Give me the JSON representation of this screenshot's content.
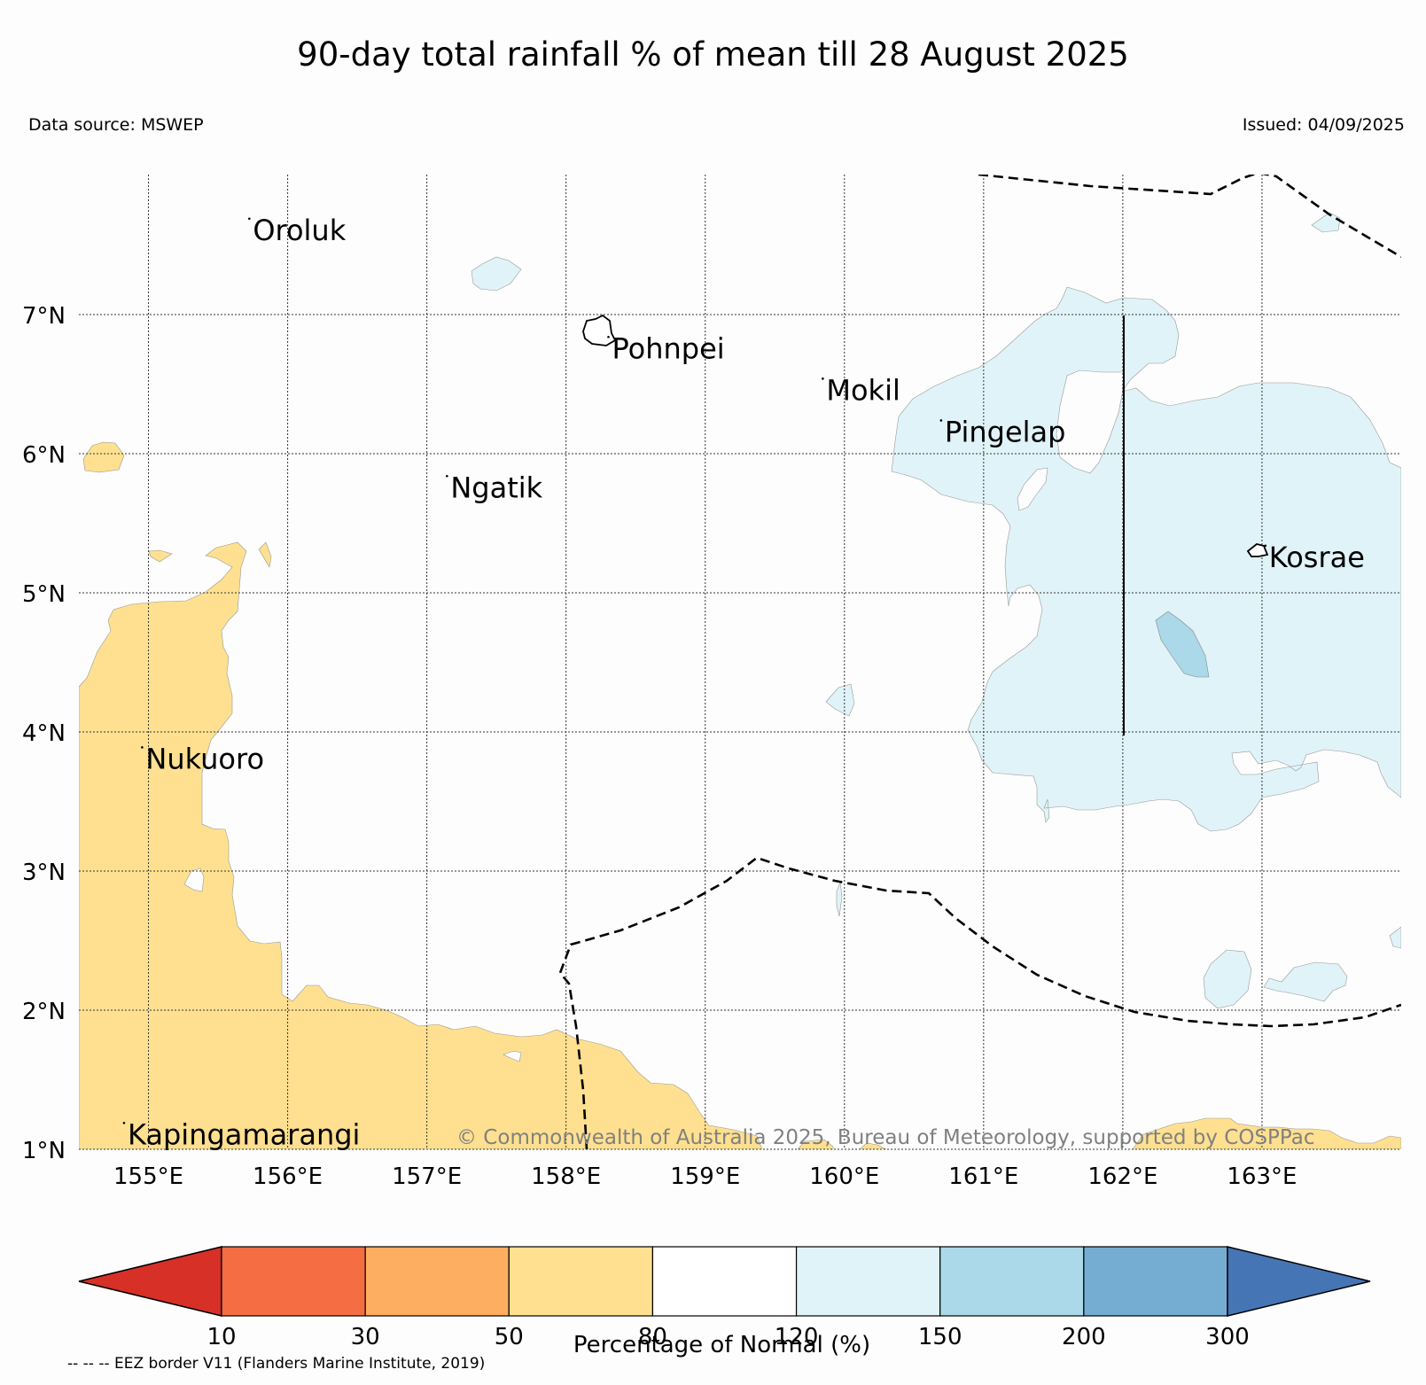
{
  "title": "90-day total rainfall % of mean till 28 August 2025",
  "data_source": "Data source: MSWEP",
  "issued": "Issued: 04/09/2025",
  "copyright": "© Commonwealth of Australia 2025, Bureau of Meteorology, supported by COSPPac",
  "eez_note": "-- -- -- EEZ border V11 (Flanders Marine Institute, 2019)",
  "colorbar": {
    "label": "Percentage of Normal (%)",
    "ticks": [
      "10",
      "30",
      "50",
      "80",
      "120",
      "150",
      "200",
      "300"
    ],
    "colors": [
      "#d73027",
      "#f46d43",
      "#fdae61",
      "#fee090",
      "#ffffff",
      "#e0f3f8",
      "#abd9e9",
      "#74add1",
      "#4575b4"
    ]
  },
  "map": {
    "lon_range": [
      154.5,
      164.0
    ],
    "lat_range": [
      1.0,
      8.0
    ],
    "lon_ticks": [
      "155°E",
      "156°E",
      "157°E",
      "158°E",
      "159°E",
      "160°E",
      "161°E",
      "162°E",
      "163°E"
    ],
    "lat_ticks": [
      "1°N",
      "2°N",
      "3°N",
      "4°N",
      "5°N",
      "6°N",
      "7°N"
    ],
    "places": [
      {
        "name": "Oroluk",
        "lon": 155.75,
        "lat": 7.6
      },
      {
        "name": "Pohnpei",
        "lon": 158.33,
        "lat": 6.75
      },
      {
        "name": "Mokil",
        "lon": 159.87,
        "lat": 6.45
      },
      {
        "name": "Pingelap",
        "lon": 160.72,
        "lat": 6.15
      },
      {
        "name": "Ngatik",
        "lon": 157.17,
        "lat": 5.75
      },
      {
        "name": "Kosrae",
        "lon": 163.05,
        "lat": 5.25
      },
      {
        "name": "Nukuoro",
        "lon": 154.98,
        "lat": 3.8
      },
      {
        "name": "Kapingamarangi",
        "lon": 154.85,
        "lat": 1.1
      }
    ]
  }
}
